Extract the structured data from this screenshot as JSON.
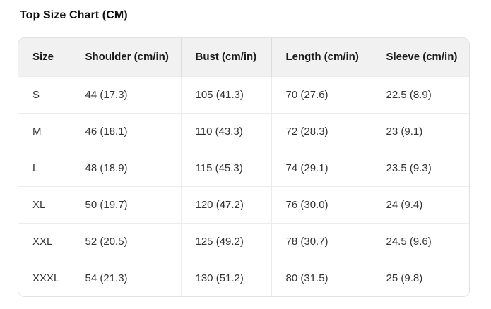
{
  "title": "Top Size Chart (CM)",
  "table": {
    "columns": [
      "Size",
      "Shoulder (cm/in)",
      "Bust (cm/in)",
      "Length (cm/in)",
      "Sleeve (cm/in)"
    ],
    "rows": [
      [
        "S",
        "44 (17.3)",
        "105 (41.3)",
        "70 (27.6)",
        "22.5 (8.9)"
      ],
      [
        "M",
        "46 (18.1)",
        "110 (43.3)",
        "72 (28.3)",
        "23 (9.1)"
      ],
      [
        "L",
        "48 (18.9)",
        "115 (45.3)",
        "74 (29.1)",
        "23.5 (9.3)"
      ],
      [
        "XL",
        "50 (19.7)",
        "120 (47.2)",
        "76 (30.0)",
        "24 (9.4)"
      ],
      [
        "XXL",
        "52 (20.5)",
        "125 (49.2)",
        "78 (30.7)",
        "24.5 (9.6)"
      ],
      [
        "XXXL",
        "54 (21.3)",
        "130 (51.2)",
        "80 (31.5)",
        "25 (9.8)"
      ]
    ]
  },
  "colors": {
    "header_bg": "#f1f1f1",
    "outer_border": "#e2e2e2",
    "cell_divider": "#ececec",
    "header_divider": "#dddddd",
    "header_text": "#1b1b1b",
    "body_text": "#333333"
  }
}
